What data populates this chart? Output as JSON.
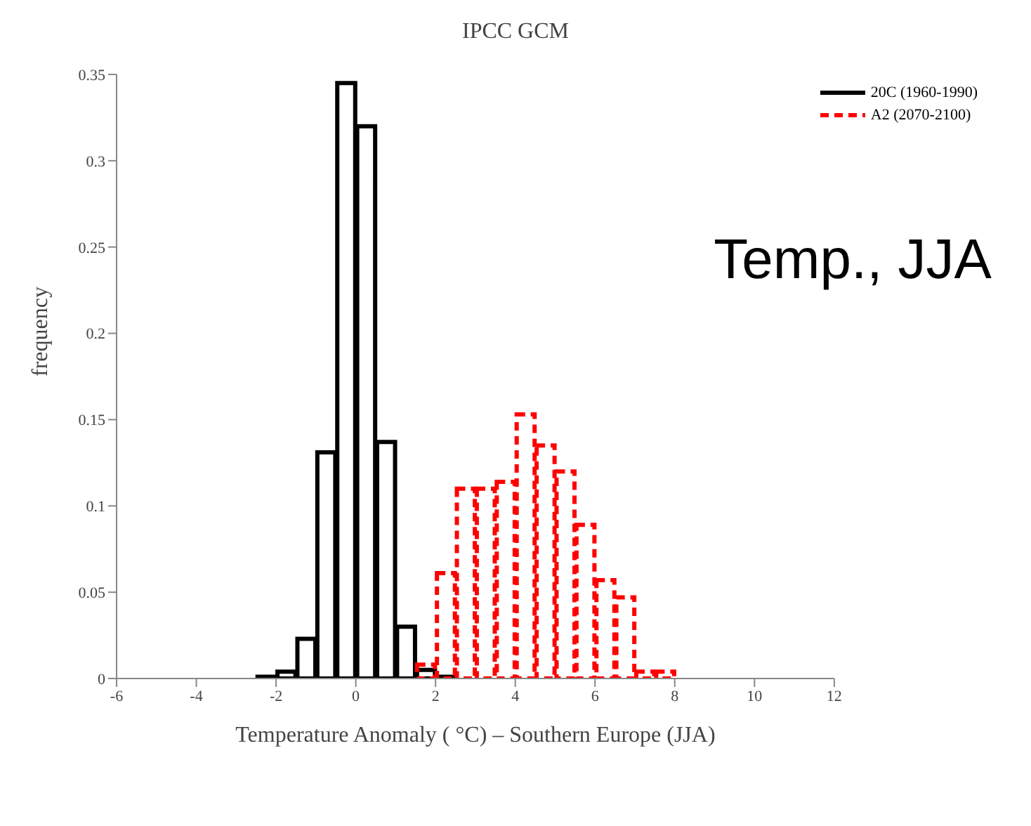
{
  "chart_data": {
    "type": "histogram",
    "title": "IPCC GCM",
    "xlabel": "Temperature Anomaly ( °C) – Southern Europe (JJA)",
    "ylabel": "frequency",
    "annotations": [
      "Temp., JJA"
    ],
    "xlim": [
      -6,
      12
    ],
    "xticks": [
      -6,
      -4,
      -2,
      0,
      2,
      4,
      6,
      8,
      10,
      12
    ],
    "ylim": [
      0,
      0.35
    ],
    "yticks": [
      0,
      0.05,
      0.1,
      0.15,
      0.2,
      0.25,
      0.3,
      0.35
    ],
    "legend": "top right",
    "bins": [
      -3,
      -2.5,
      -2,
      -1.5,
      -1,
      -0.5,
      0,
      0.5,
      1,
      1.5,
      2,
      2.5,
      3,
      3.5,
      4,
      4.5,
      5,
      5.5,
      6,
      6.5,
      7,
      7.5,
      8
    ],
    "series": [
      {
        "name": "20C (1960-1990)",
        "color": "#000000",
        "line_style": "solid",
        "values": [
          0,
          0.001,
          0.004,
          0.023,
          0.131,
          0.345,
          0.32,
          0.137,
          0.03,
          0.005,
          0.001,
          0,
          0,
          0,
          0,
          0,
          0,
          0,
          0,
          0,
          0,
          0
        ]
      },
      {
        "name": "A2 (2070-2100)",
        "color": "#ff0000",
        "line_style": "dashed",
        "values": [
          0,
          0,
          0,
          0,
          0,
          0,
          0,
          0,
          0,
          0.008,
          0.061,
          0.11,
          0.11,
          0.114,
          0.153,
          0.135,
          0.12,
          0.089,
          0.057,
          0.047,
          0.004,
          0.004
        ]
      }
    ]
  }
}
